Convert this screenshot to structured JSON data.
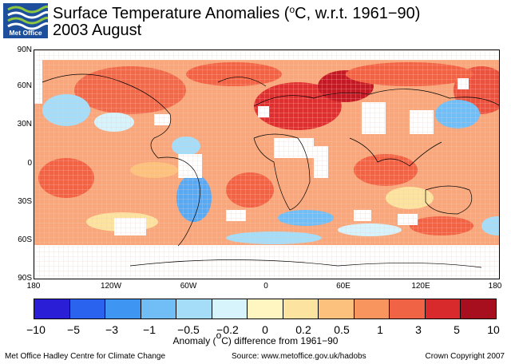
{
  "header": {
    "logo_text": "Met Office",
    "title_prefix": "Surface Temperature Anomalies (",
    "title_sup": "o",
    "title_suffix": "C, w.r.t. 1961−90)",
    "subtitle": "2003 August"
  },
  "map": {
    "lat_labels": [
      "90N",
      "60N",
      "30N",
      "0",
      "30S",
      "60S",
      "90S"
    ],
    "lat_values": [
      90,
      60,
      30,
      0,
      -30,
      -60,
      -90
    ],
    "lon_labels": [
      "180",
      "120W",
      "60W",
      "0",
      "60E",
      "120E",
      "180"
    ],
    "lon_values": [
      -180,
      -120,
      -60,
      0,
      60,
      120,
      180
    ],
    "no_data_color": "#ffffff"
  },
  "colorbar": {
    "colors": [
      "#2a1fd6",
      "#2a63ee",
      "#3f95f2",
      "#70bef5",
      "#a5dcf8",
      "#d7f3fc",
      "#fff6c2",
      "#fde3a0",
      "#fcc27d",
      "#f8955f",
      "#f06345",
      "#d8292d",
      "#a80f1e"
    ],
    "labels": [
      "−10",
      "−5",
      "−3",
      "−1",
      "−0.5",
      "−0.2",
      "0",
      "0.2",
      "0.5",
      "1",
      "3",
      "5",
      "10"
    ],
    "title_prefix": "Anomaly (",
    "title_sup": "o",
    "title_suffix": "C) difference from 1961−90"
  },
  "footer": {
    "left": "Met Office Hadley Centre for Climate Change",
    "middle": "Source: www.metoffice.gov.uk/hadobs",
    "right": "Crown Copyright 2007"
  }
}
